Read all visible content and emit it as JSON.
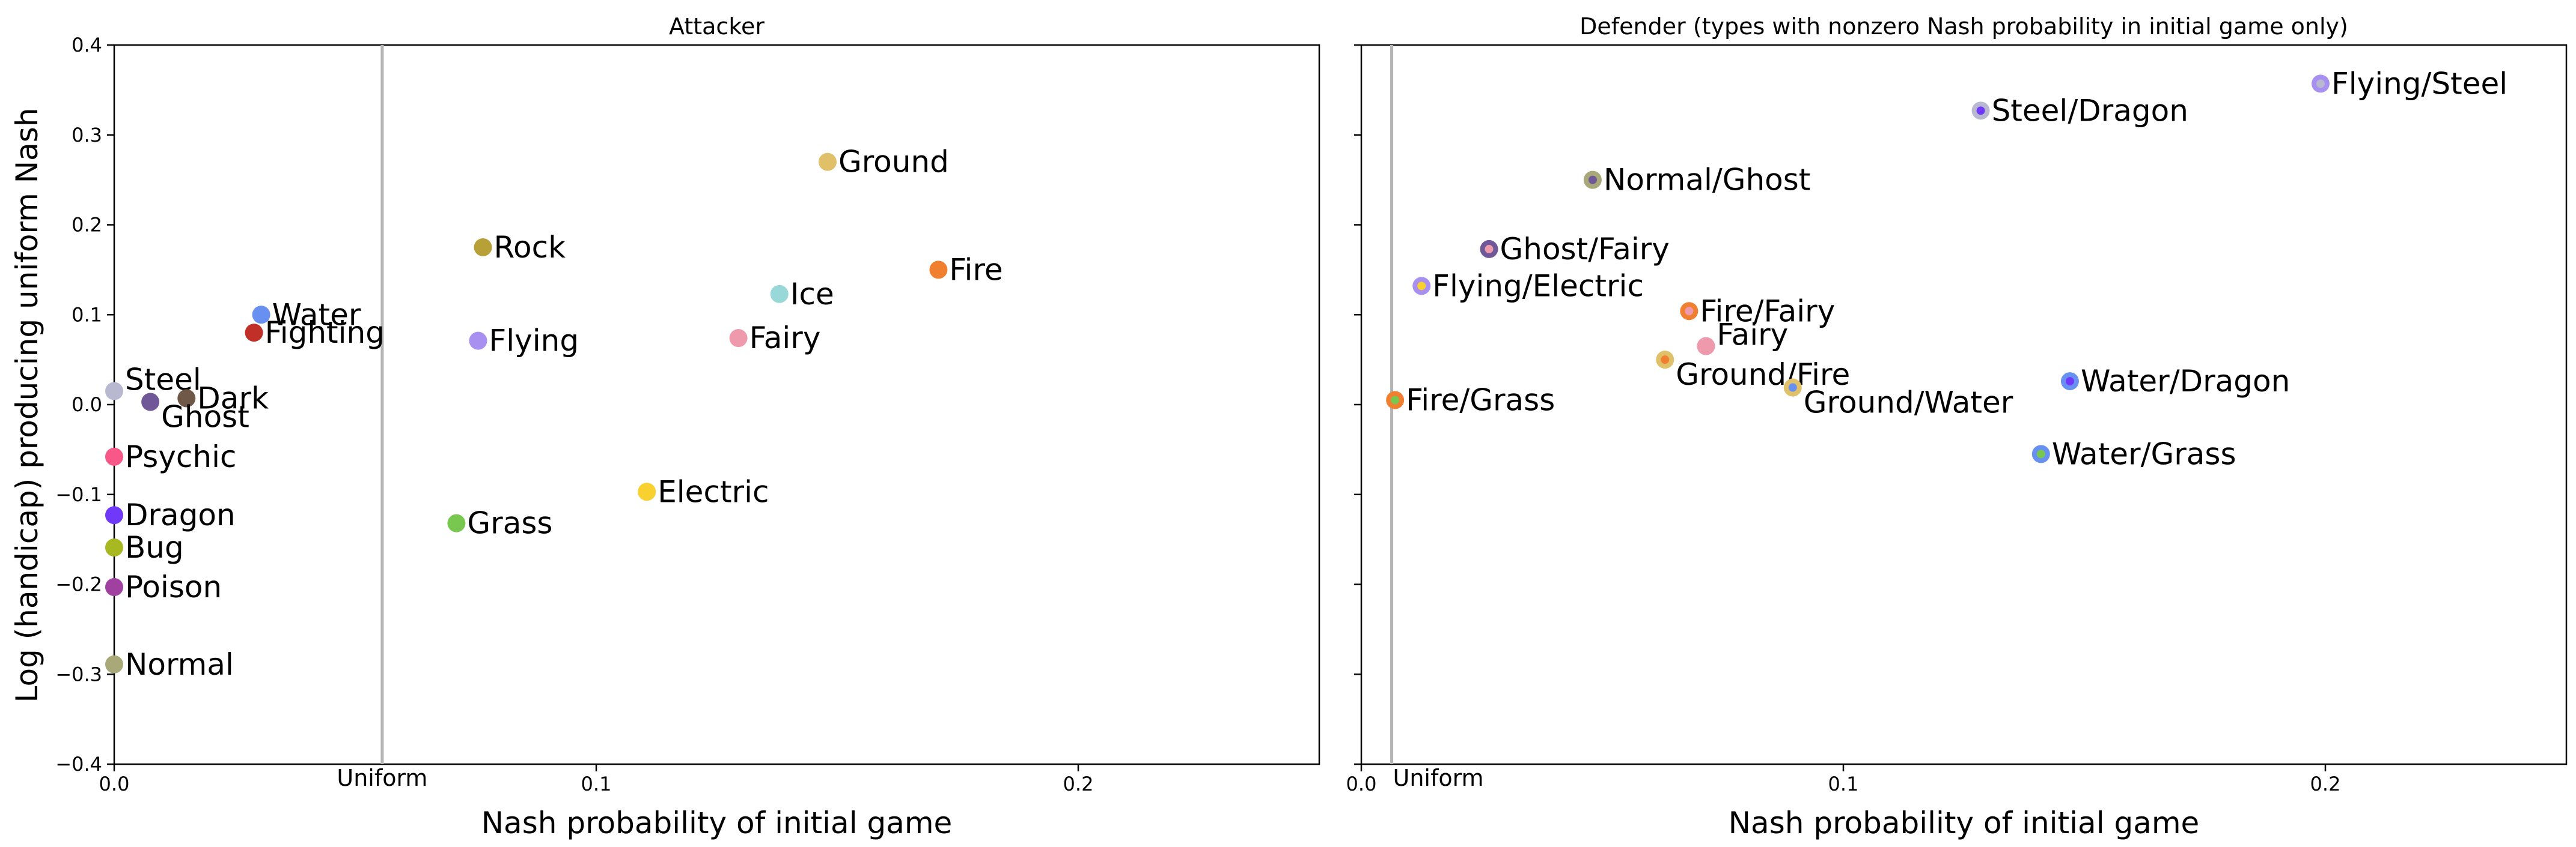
{
  "figure": {
    "ylabel": "Log (handicap) producing uniform Nash"
  },
  "chart_data": [
    {
      "type": "scatter",
      "title": "Attacker",
      "xlabel": "Nash probability of initial game",
      "ylabel": "Log (handicap) producing uniform Nash",
      "xlim": [
        0.0,
        0.25
      ],
      "ylim": [
        -0.4,
        0.4
      ],
      "xticks": [
        {
          "value": 0.0,
          "label": "0.0"
        },
        {
          "value": 0.1,
          "label": "0.1"
        },
        {
          "value": 0.2,
          "label": "0.2"
        }
      ],
      "yticks": [
        {
          "value": 0.4,
          "label": "0.4"
        },
        {
          "value": 0.3,
          "label": "0.3"
        },
        {
          "value": 0.2,
          "label": "0.2"
        },
        {
          "value": 0.1,
          "label": "0.1"
        },
        {
          "value": 0.0,
          "label": "0.0"
        },
        {
          "value": -0.1,
          "label": "−0.1"
        },
        {
          "value": -0.2,
          "label": "−0.2"
        },
        {
          "value": -0.3,
          "label": "−0.3"
        },
        {
          "value": -0.4,
          "label": "−0.4"
        }
      ],
      "reference_line": {
        "x": 0.0556,
        "label": "Uniform"
      },
      "grid": false,
      "points": [
        {
          "name": "Ground",
          "x": 0.148,
          "y": 0.27,
          "color": "#e0c068",
          "label_pos": "right"
        },
        {
          "name": "Rock",
          "x": 0.0765,
          "y": 0.175,
          "color": "#b8a038",
          "label_pos": "right"
        },
        {
          "name": "Fire",
          "x": 0.171,
          "y": 0.15,
          "color": "#f08030",
          "label_pos": "right"
        },
        {
          "name": "Ice",
          "x": 0.138,
          "y": 0.123,
          "color": "#98d8d8",
          "label_pos": "right"
        },
        {
          "name": "Water",
          "x": 0.0305,
          "y": 0.1,
          "color": "#6890f0",
          "label_pos": "right"
        },
        {
          "name": "Fighting",
          "x": 0.029,
          "y": 0.08,
          "color": "#c03028",
          "label_pos": "right"
        },
        {
          "name": "Fairy",
          "x": 0.1295,
          "y": 0.074,
          "color": "#ee99ac",
          "label_pos": "right"
        },
        {
          "name": "Flying",
          "x": 0.0755,
          "y": 0.071,
          "color": "#a890f0",
          "label_pos": "right"
        },
        {
          "name": "Steel",
          "x": 0.0,
          "y": 0.015,
          "color": "#b8b8d0",
          "label_pos": "upper-right"
        },
        {
          "name": "Dark",
          "x": 0.015,
          "y": 0.007,
          "color": "#705848",
          "label_pos": "right"
        },
        {
          "name": "Ghost",
          "x": 0.0075,
          "y": 0.003,
          "color": "#705898",
          "label_pos": "lower-right"
        },
        {
          "name": "Psychic",
          "x": 0.0,
          "y": -0.058,
          "color": "#f85888",
          "label_pos": "right"
        },
        {
          "name": "Electric",
          "x": 0.1105,
          "y": -0.097,
          "color": "#f8d030",
          "label_pos": "right"
        },
        {
          "name": "Dragon",
          "x": 0.0,
          "y": -0.123,
          "color": "#7038f8",
          "label_pos": "right"
        },
        {
          "name": "Grass",
          "x": 0.071,
          "y": -0.132,
          "color": "#78c850",
          "label_pos": "right"
        },
        {
          "name": "Bug",
          "x": 0.0,
          "y": -0.159,
          "color": "#a8b820",
          "label_pos": "right"
        },
        {
          "name": "Poison",
          "x": 0.0,
          "y": -0.203,
          "color": "#a040a0",
          "label_pos": "right"
        },
        {
          "name": "Normal",
          "x": 0.0,
          "y": -0.289,
          "color": "#a8a878",
          "label_pos": "right"
        }
      ]
    },
    {
      "type": "scatter",
      "title": "Defender (types with nonzero Nash probability in initial game only)",
      "xlabel": "Nash probability of initial game",
      "xlim": [
        0.0,
        0.25
      ],
      "ylim": [
        -0.4,
        0.4
      ],
      "xticks": [
        {
          "value": 0.0,
          "label": "0.0"
        },
        {
          "value": 0.1,
          "label": "0.1"
        },
        {
          "value": 0.2,
          "label": "0.2"
        }
      ],
      "yticks": [
        {
          "value": 0.4,
          "label": ""
        },
        {
          "value": 0.3,
          "label": ""
        },
        {
          "value": 0.2,
          "label": ""
        },
        {
          "value": 0.1,
          "label": ""
        },
        {
          "value": 0.0,
          "label": ""
        },
        {
          "value": -0.1,
          "label": ""
        },
        {
          "value": -0.2,
          "label": ""
        },
        {
          "value": -0.3,
          "label": ""
        },
        {
          "value": -0.4,
          "label": ""
        }
      ],
      "reference_line": {
        "x": 0.0063,
        "label": "Uniform"
      },
      "grid": false,
      "points": [
        {
          "name": "Flying/Steel",
          "x": 0.199,
          "y": 0.357,
          "color": "#a890f0",
          "inner_color": "#b8b8d0",
          "label_pos": "right"
        },
        {
          "name": "Steel/Dragon",
          "x": 0.1285,
          "y": 0.327,
          "color": "#b8b8d0",
          "inner_color": "#7038f8",
          "label_pos": "right"
        },
        {
          "name": "Normal/Ghost",
          "x": 0.048,
          "y": 0.25,
          "color": "#a8a878",
          "inner_color": "#705898",
          "label_pos": "right"
        },
        {
          "name": "Ghost/Fairy",
          "x": 0.0265,
          "y": 0.173,
          "color": "#705898",
          "inner_color": "#ee99ac",
          "label_pos": "right"
        },
        {
          "name": "Flying/Electric",
          "x": 0.0125,
          "y": 0.132,
          "color": "#a890f0",
          "inner_color": "#f8d030",
          "label_pos": "right"
        },
        {
          "name": "Fire/Fairy",
          "x": 0.068,
          "y": 0.104,
          "color": "#f08030",
          "inner_color": "#ee99ac",
          "label_pos": "right"
        },
        {
          "name": "Fairy",
          "x": 0.0715,
          "y": 0.065,
          "color": "#ee99ac",
          "inner_color": "#ee99ac",
          "label_pos": "upper-right"
        },
        {
          "name": "Ground/Fire",
          "x": 0.063,
          "y": 0.05,
          "color": "#e0c068",
          "inner_color": "#f08030",
          "label_pos": "lower-right"
        },
        {
          "name": "Water/Dragon",
          "x": 0.147,
          "y": 0.026,
          "color": "#6890f0",
          "inner_color": "#7038f8",
          "label_pos": "right"
        },
        {
          "name": "Ground/Water",
          "x": 0.0895,
          "y": 0.019,
          "color": "#e0c068",
          "inner_color": "#6890f0",
          "label_pos": "lower-right"
        },
        {
          "name": "Fire/Grass",
          "x": 0.007,
          "y": 0.005,
          "color": "#f08030",
          "inner_color": "#78c850",
          "label_pos": "right"
        },
        {
          "name": "Water/Grass",
          "x": 0.141,
          "y": -0.055,
          "color": "#6890f0",
          "inner_color": "#78c850",
          "label_pos": "right"
        }
      ]
    }
  ]
}
